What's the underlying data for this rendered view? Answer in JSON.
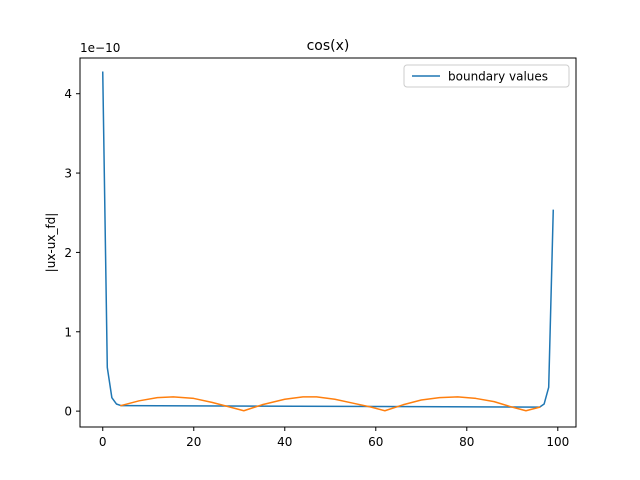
{
  "chart_data": {
    "type": "line",
    "title": "cos(x)",
    "xlabel": "",
    "ylabel": "|ux-ux_fd|",
    "y_offset_label": "1e−10",
    "y_scale_factor": 1e-10,
    "xlim": [
      -5,
      104
    ],
    "ylim": [
      -0.2,
      4.45
    ],
    "x_ticks": [
      0,
      20,
      40,
      60,
      80,
      100
    ],
    "x_tick_labels": [
      "0",
      "20",
      "40",
      "60",
      "80",
      "100"
    ],
    "y_ticks": [
      0,
      1,
      2,
      3,
      4
    ],
    "y_tick_labels": [
      "0",
      "1",
      "2",
      "3",
      "4"
    ],
    "grid": false,
    "legend": {
      "position": "top-right"
    },
    "series": [
      {
        "name": "boundary values",
        "color": "#1f77b4",
        "x": [
          0,
          1,
          2,
          3,
          4,
          96,
          97,
          98,
          99
        ],
        "y": [
          4.27,
          0.55,
          0.17,
          0.09,
          0.07,
          0.05,
          0.09,
          0.3,
          2.53
        ]
      },
      {
        "name": "",
        "color": "#ff7f0e",
        "x": [
          4,
          8,
          12,
          15.5,
          20,
          24,
          28,
          31,
          35,
          40,
          44,
          47,
          51,
          55,
          59,
          62,
          66,
          70,
          74,
          78,
          82,
          86,
          90,
          93,
          96
        ],
        "y": [
          0.07,
          0.13,
          0.17,
          0.18,
          0.16,
          0.11,
          0.05,
          0.005,
          0.08,
          0.15,
          0.18,
          0.18,
          0.15,
          0.1,
          0.05,
          0.005,
          0.08,
          0.14,
          0.17,
          0.18,
          0.16,
          0.12,
          0.05,
          0.005,
          0.05
        ]
      }
    ]
  }
}
